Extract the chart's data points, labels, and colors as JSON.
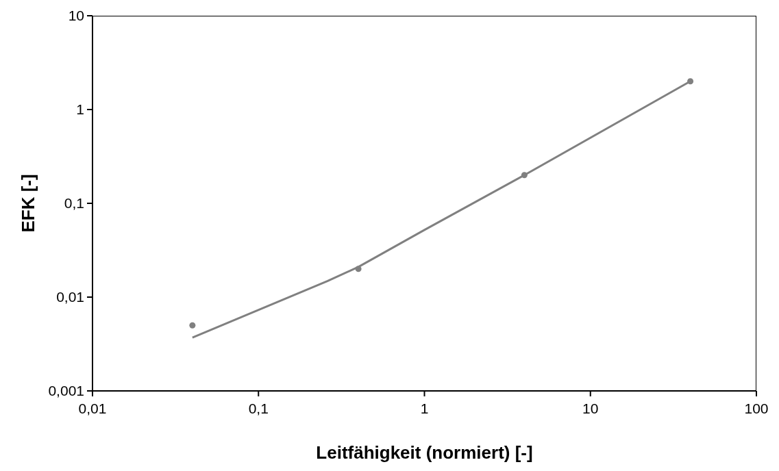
{
  "chart_data": {
    "type": "scatter",
    "xlabel": "Leitfähigkeit (normiert) [-]",
    "ylabel": "EFK [-]",
    "log": "xy",
    "grid": false,
    "legend": false,
    "xlim": [
      0.01,
      100
    ],
    "xticks": [
      {
        "value": 0.01,
        "label": "0,01"
      },
      {
        "value": 0.1,
        "label": "0,1"
      },
      1,
      10,
      100
    ],
    "ylim": [
      0.001,
      10
    ],
    "yticks": [
      {
        "value": 0.001,
        "label": "0,001"
      },
      {
        "value": 0.01,
        "label": "0,01"
      },
      {
        "value": 0.1,
        "label": "0,1"
      },
      1,
      10
    ],
    "series": [
      {
        "color": "#808080",
        "marker": "circle",
        "x": [
          0.04,
          0.4,
          4,
          40
        ],
        "values": [
          0.005,
          0.02,
          0.2,
          2
        ]
      },
      {
        "type": "line",
        "color": "#808080",
        "marker": "none",
        "line_style": "solid",
        "x": [
          0.04,
          0.26,
          0.4,
          1,
          4,
          40
        ],
        "values": [
          0.0037,
          0.0148,
          0.021,
          0.052,
          0.2,
          2
        ]
      }
    ]
  }
}
